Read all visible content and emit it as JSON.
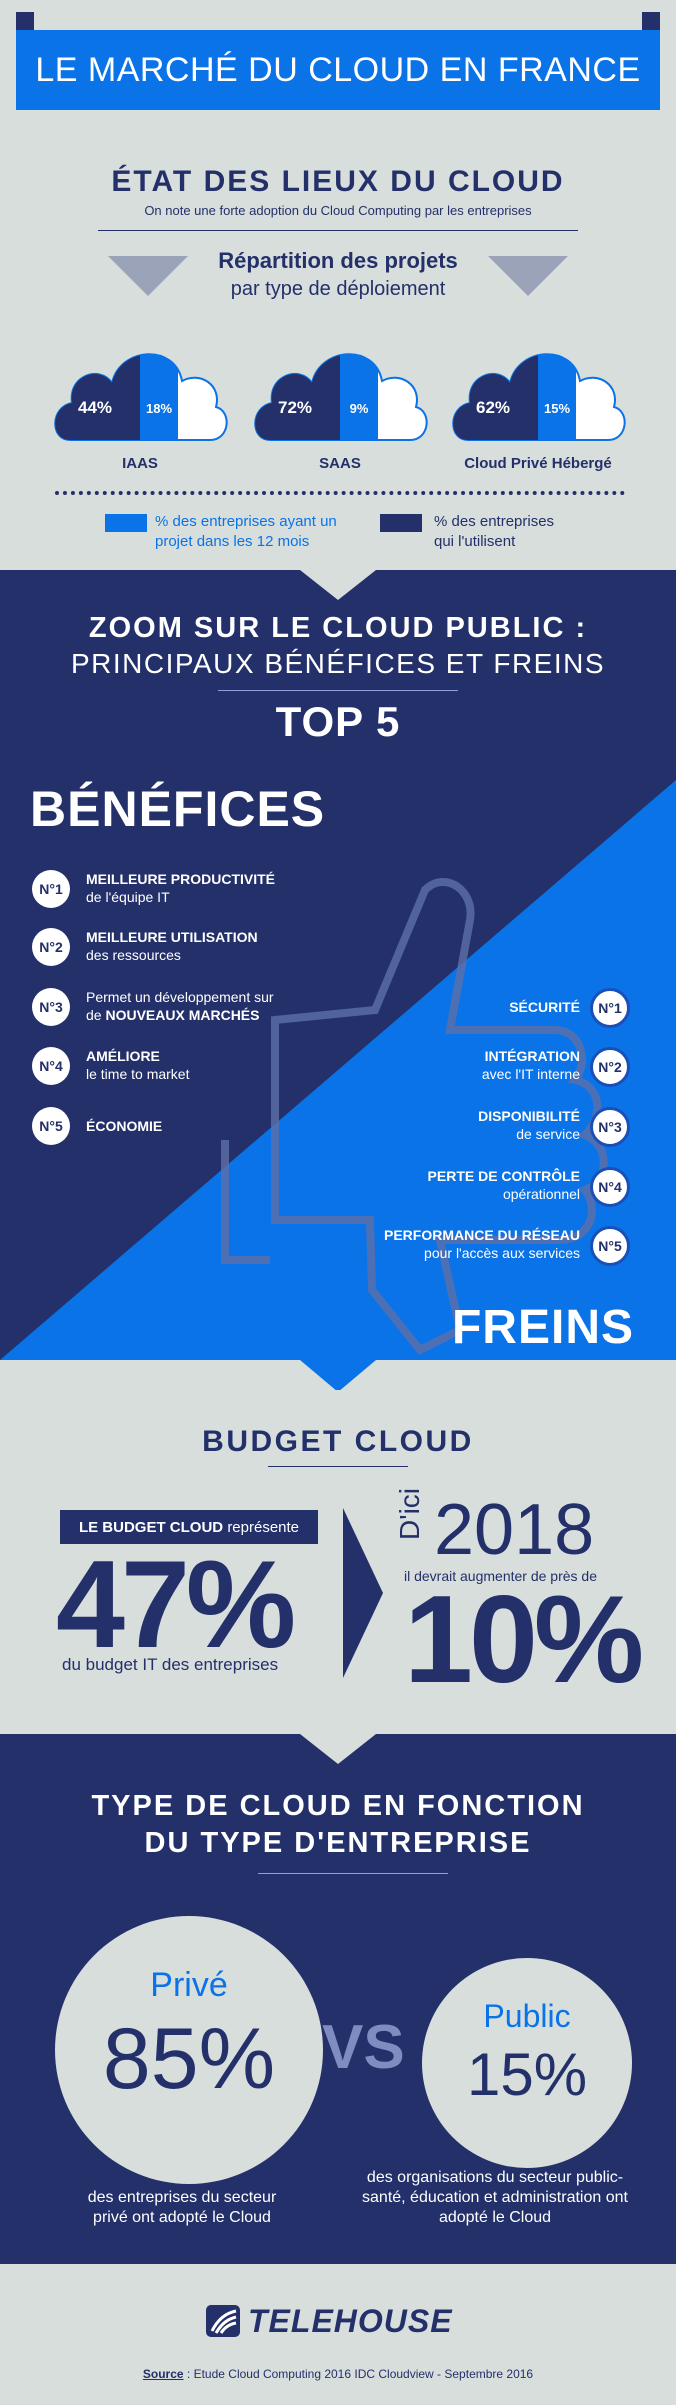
{
  "header": {
    "title": "LE MARCHÉ DU CLOUD EN FRANCE"
  },
  "state": {
    "title": "ÉTAT DES LIEUX DU CLOUD",
    "subtitle": "On note une forte adoption du Cloud Computing par les entreprises",
    "repartition_title": "Répartition des projets",
    "repartition_subtitle": "par type de déploiement",
    "clouds": [
      {
        "name": "IAAS",
        "using": "44%",
        "planning": "18%",
        "using_value": 44,
        "planning_value": 18
      },
      {
        "name": "SAAS",
        "using": "72%",
        "planning": "9%",
        "using_value": 72,
        "planning_value": 9
      },
      {
        "name": "Cloud Privé Hébergé",
        "using": "62%",
        "planning": "15%",
        "using_value": 62,
        "planning_value": 15
      }
    ],
    "legend_planning": "% des entreprises ayant un projet dans les 12 mois",
    "legend_using": "% des entreprises qui l'utilisent"
  },
  "zoom": {
    "title_line1": "ZOOM SUR LE CLOUD PUBLIC :",
    "title_line2": "PRINCIPAUX BÉNÉFICES ET FREINS",
    "top": "TOP 5",
    "benefits_title": "BÉNÉFICES",
    "brakes_title": "FREINS",
    "benefits": [
      {
        "num": "N°1",
        "bold": "MEILLEURE PRODUCTIVITÉ",
        "rest": "de l'équipe IT"
      },
      {
        "num": "N°2",
        "bold": "MEILLEURE UTILISATION",
        "rest": "des ressources"
      },
      {
        "num": "N°3",
        "line1": "Permet un développement sur",
        "line2_prefix": "de ",
        "line2_bold": "NOUVEAUX MARCHÉS"
      },
      {
        "num": "N°4",
        "bold": "AMÉLIORE",
        "rest": "le time to market"
      },
      {
        "num": "N°5",
        "bold": "ÉCONOMIE",
        "rest": ""
      }
    ],
    "brakes": [
      {
        "num": "N°1",
        "bold": "SÉCURITÉ",
        "rest": ""
      },
      {
        "num": "N°2",
        "bold": "INTÉGRATION",
        "rest": "avec l'IT interne"
      },
      {
        "num": "N°3",
        "bold": "DISPONIBILITÉ",
        "rest": "de service"
      },
      {
        "num": "N°4",
        "bold": "PERTE DE CONTRÔLE",
        "rest": "opérationnel"
      },
      {
        "num": "N°5",
        "bold": "PERFORMANCE DU RÉSEAU",
        "rest": "pour l'accès aux services"
      }
    ]
  },
  "budget": {
    "title": "BUDGET CLOUD",
    "label_bold": "LE BUDGET CLOUD",
    "label_rest": "représente",
    "percent": "47%",
    "percent_caption": "du budget IT des entreprises",
    "by_prefix": "D'ici",
    "year": "2018",
    "growth_caption": "il devrait augmenter de près de",
    "growth": "10%"
  },
  "types": {
    "title_line1": "TYPE DE CLOUD EN FONCTION",
    "title_line2": "DU TYPE D'ENTREPRISE",
    "private_label": "Privé",
    "private_value": "85%",
    "private_caption": "des entreprises du secteur privé ont adopté le Cloud",
    "vs": "VS",
    "public_label": "Public",
    "public_value": "15%",
    "public_caption": "des organisations du secteur public- santé, éducation et administration ont adopté le Cloud"
  },
  "footer": {
    "brand": "TELEHOUSE",
    "source_label": "Source",
    "source_text": " : Etude Cloud Computing 2016 IDC Cloudview - Septembre 2016"
  },
  "colors": {
    "navy": "#23306a",
    "blue": "#0a73e8",
    "light": "#d8dedc",
    "white": "#ffffff"
  }
}
